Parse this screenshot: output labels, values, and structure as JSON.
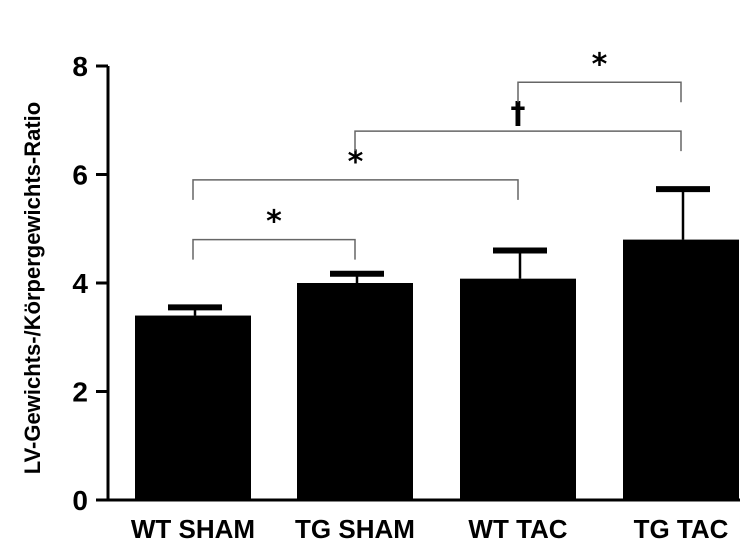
{
  "chart_data": {
    "type": "bar",
    "categories": [
      "WT SHAM",
      "TG SHAM",
      "WT TAC",
      "TG TAC"
    ],
    "values": [
      3.4,
      4.0,
      4.08,
      4.8
    ],
    "error_upper": [
      3.55,
      4.17,
      4.6,
      5.73
    ],
    "ylabel": "LV-Gewichts-/Körpergewichts-Ratio",
    "ylim": [
      0,
      8
    ],
    "yticks": [
      "0",
      "2",
      "4",
      "6",
      "8"
    ],
    "bar_color": "#000000",
    "grid": false,
    "legend": "none",
    "significance": [
      {
        "from": 0,
        "to": 1,
        "symbol": "*",
        "y": 4.8
      },
      {
        "from": 0,
        "to": 2,
        "symbol": "*",
        "y": 5.9
      },
      {
        "from": 1,
        "to": 3,
        "symbol": "†",
        "y": 6.8
      },
      {
        "from": 2,
        "to": 3,
        "symbol": "*",
        "y": 7.7
      }
    ]
  }
}
